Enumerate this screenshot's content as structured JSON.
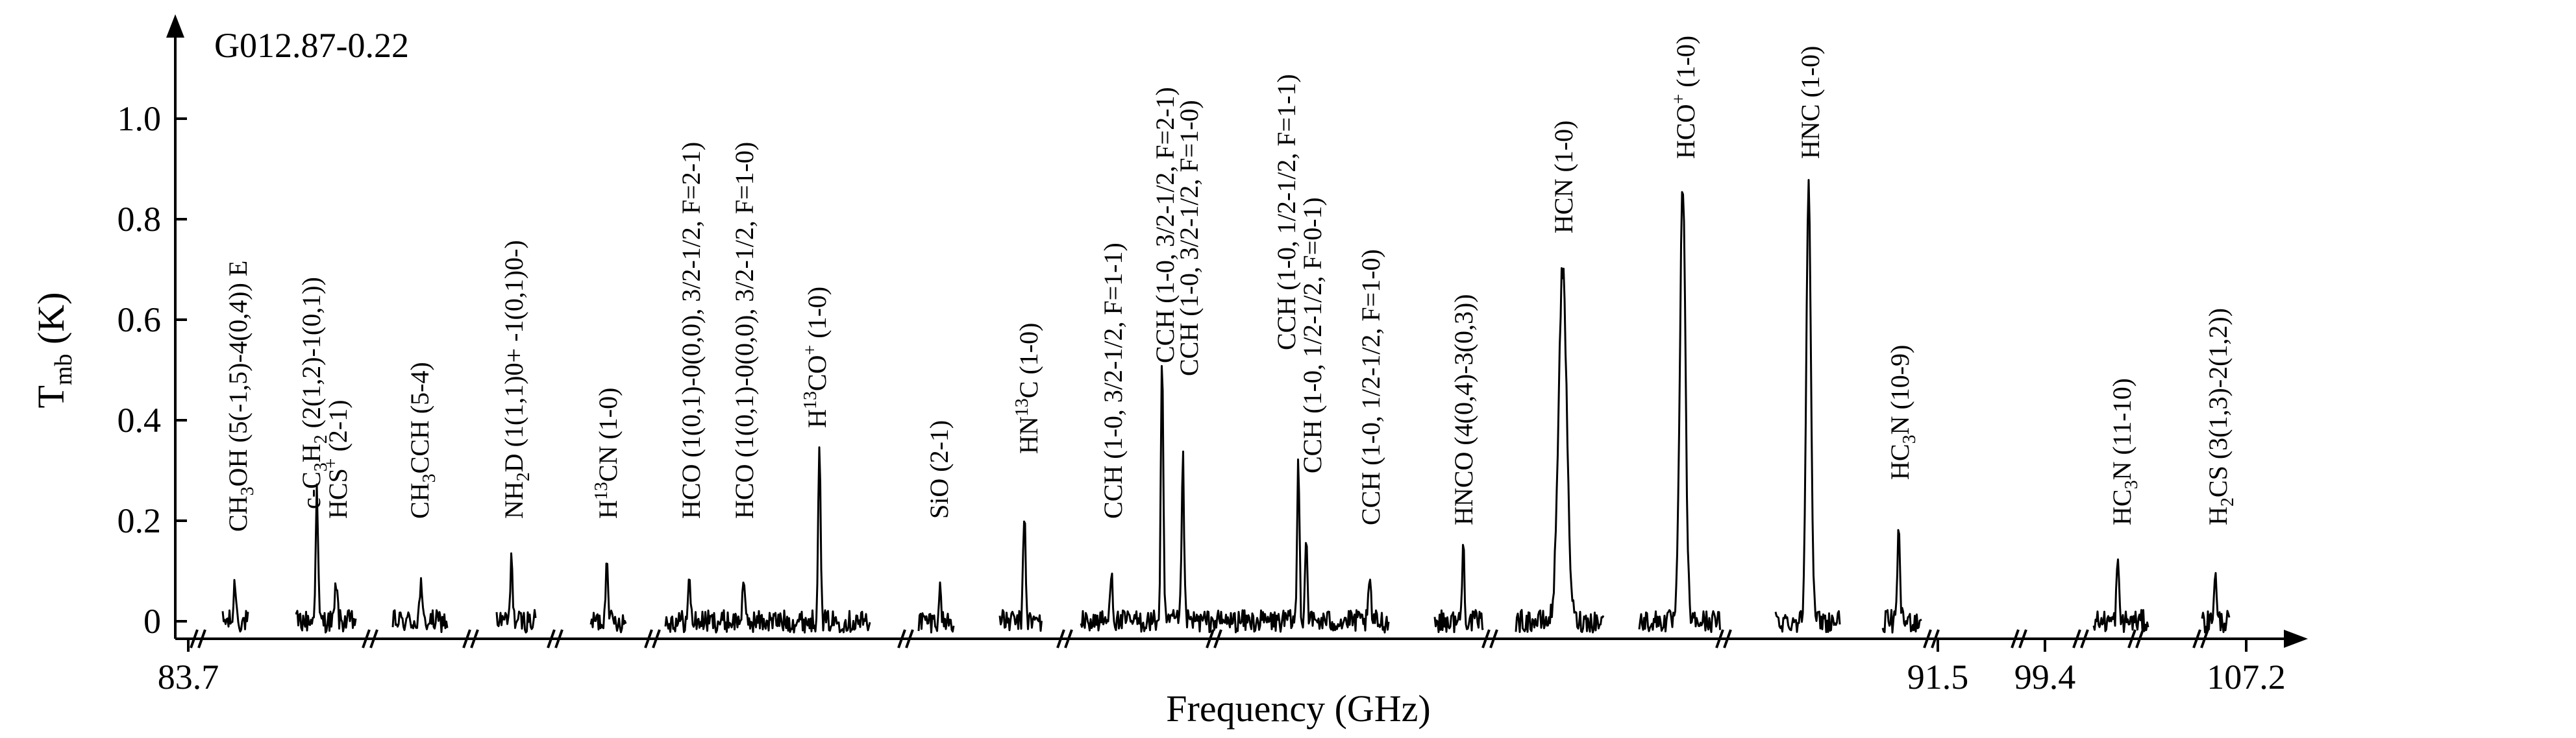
{
  "chart_data": {
    "type": "line",
    "title": "G012.87-0.22",
    "xlabel": "Frequency (GHz)",
    "ylabel_main": "T",
    "ylabel_sub": "mb",
    "ylabel_unit": " (K)",
    "ylim": [
      -0.03,
      1.12
    ],
    "y_ticks": [
      "0",
      "0.2",
      "0.4",
      "0.6",
      "0.8",
      "1.0"
    ],
    "x_ticks": [
      "83.7",
      "91.5",
      "99.4",
      "107.2"
    ],
    "grid": false,
    "legend": "none",
    "line_color": "#000000",
    "segments": [
      {
        "line": "CH3OH (5(-1,5)-4(0,4)) E",
        "label": [
          {
            "t": "CH"
          },
          {
            "t": "3",
            "s": "sub"
          },
          {
            "t": "OH (5(-1,5)-4(0,4)) E"
          }
        ],
        "peak": 0.08
      },
      {
        "line": "c-C3H2 (2(1,2)-1(0,1)) / HCS+ (2-1)",
        "label": [
          {
            "t": "c-C"
          },
          {
            "t": "3",
            "s": "sub"
          },
          {
            "t": "H"
          },
          {
            "t": "2",
            "s": "sub"
          },
          {
            "t": " (2(1,2)-1(0,1))"
          }
        ],
        "label2": [
          {
            "t": "HCS"
          },
          {
            "t": "+",
            "s": "sup"
          },
          {
            "t": " (2-1)"
          }
        ],
        "peak": 0.26,
        "peak2": 0.08
      },
      {
        "line": "CH3CCH (5-4)",
        "label": [
          {
            "t": "CH"
          },
          {
            "t": "3",
            "s": "sub"
          },
          {
            "t": "CCH (5-4)"
          }
        ],
        "peak": 0.07
      },
      {
        "line": "NH2D (1(1,1)0+ -1(0,1)0-)",
        "label": [
          {
            "t": "NH"
          },
          {
            "t": "2",
            "s": "sub"
          },
          {
            "t": "D (1(1,1)0+ -1(0,1)0-)"
          }
        ],
        "peak": 0.12
      },
      {
        "line": "H13CN (1-0)",
        "label": [
          {
            "t": "H"
          },
          {
            "t": "13",
            "s": "sup"
          },
          {
            "t": "CN (1-0)"
          }
        ],
        "peak": 0.14
      },
      {
        "line": "HCO / H13CO+ (1-0)",
        "label": [
          {
            "t": "HCO (1(0,1)-0(0,0), 3/2-1/2, F=2-1)"
          }
        ],
        "label2": [
          {
            "t": "HCO (1(0,1)-0(0,0), 3/2-1/2, F=1-0)"
          }
        ],
        "label3": [
          {
            "t": "H"
          },
          {
            "t": "13",
            "s": "sup"
          },
          {
            "t": "CO"
          },
          {
            "t": "+",
            "s": "sup"
          },
          {
            "t": " (1-0)"
          }
        ],
        "peak": 0.08,
        "peak2": 0.08,
        "peak3": 0.36
      },
      {
        "line": "SiO (2-1)",
        "label": [
          {
            "t": "SiO (2-1)"
          }
        ],
        "peak": 0.06
      },
      {
        "line": "HN13C (1-0)",
        "label": [
          {
            "t": "HN"
          },
          {
            "t": "13",
            "s": "sup"
          },
          {
            "t": "C (1-0)"
          }
        ],
        "peak": 0.22
      },
      {
        "line": "CCH hyperfine group",
        "label": [
          {
            "t": "CCH (1-0, 3/2-1/2, F=1-1)"
          }
        ],
        "label2": [
          {
            "t": "CCH (1-0, 3/2-1/2, F=2-1)"
          }
        ],
        "label3": [
          {
            "t": "CCH (1-0, 3/2-1/2, F=1-0)"
          }
        ],
        "label4": [
          {
            "t": "CCH (1-0, 1/2-1/2, F=1-1)"
          }
        ],
        "label5": [
          {
            "t": "CCH (1-0, 1/2-1/2, F=0-1)"
          }
        ],
        "label6": [
          {
            "t": "CCH (1-0, 1/2-1/2, F=1-0)"
          }
        ],
        "peak": 0.11,
        "peak2": 0.52,
        "peak3": 0.33,
        "peak4": 0.32,
        "peak5": 0.17,
        "peak6": 0.08
      },
      {
        "line": "HNCO (4(0,4)-3(0,3))",
        "label": [
          {
            "t": "HNCO (4(0,4)-3(0,3))"
          }
        ],
        "peak": 0.15
      },
      {
        "line": "HCN (1-0)",
        "label": [
          {
            "t": "HCN (1-0)"
          }
        ],
        "peak": 0.7
      },
      {
        "line": "HCO+ (1-0)",
        "label": [
          {
            "t": "HCO"
          },
          {
            "t": "+",
            "s": "sup"
          },
          {
            "t": " (1-0)"
          }
        ],
        "peak": 0.87
      },
      {
        "line": "HNC (1-0)",
        "label": [
          {
            "t": "HNC (1-0)"
          }
        ],
        "peak": 0.89
      },
      {
        "line": "HC3N (10-9)",
        "label": [
          {
            "t": "HC"
          },
          {
            "t": "3",
            "s": "sub"
          },
          {
            "t": "N (10-9)"
          }
        ],
        "peak": 0.19
      },
      {
        "line": "HC3N (11-10)",
        "label": [
          {
            "t": "HC"
          },
          {
            "t": "3",
            "s": "sub"
          },
          {
            "t": "N (11-10)"
          }
        ],
        "peak": 0.12
      },
      {
        "line": "H2CS (3(1,3)-2(1,2))",
        "label": [
          {
            "t": "H"
          },
          {
            "t": "2",
            "s": "sub"
          },
          {
            "t": "CS (3(1,3)-2(1,2))"
          }
        ],
        "peak": 0.1
      }
    ]
  }
}
